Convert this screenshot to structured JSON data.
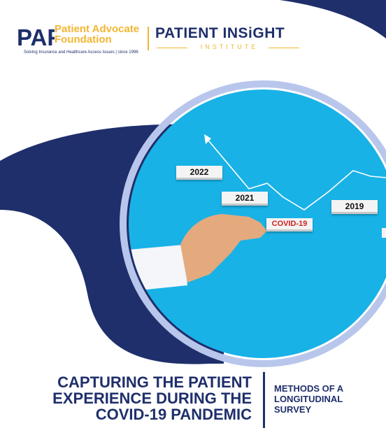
{
  "branding": {
    "paf_mark": "PAF",
    "paf_name_line1": "Patient Advocate",
    "paf_name_line2": "Foundation",
    "paf_tagline": "Solving Insurance and Healthcare Access Issues | since 1996",
    "pii_title": "PATIENT INSiGHT",
    "pii_subtitle": "INSTITUTE"
  },
  "image": {
    "signs": {
      "year_2022": "2022",
      "year_2021": "2021",
      "year_2019": "2019",
      "covid": "COVID-19"
    }
  },
  "title": {
    "line1": "CAPTURING THE PATIENT",
    "line2": "EXPERIENCE DURING THE",
    "line3": "COVID-19 PANDEMIC"
  },
  "subtitle": {
    "line1": "METHODS OF A",
    "line2": "LONGITUDINAL",
    "line3": "SURVEY"
  },
  "colors": {
    "navy": "#1f2f6b",
    "gold": "#f2b632",
    "sky": "#19b2e6",
    "ring": "#b9c6ec",
    "covid_red": "#d11f1f"
  }
}
